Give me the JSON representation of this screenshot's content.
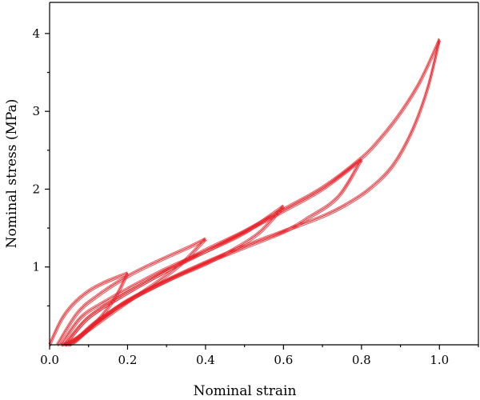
{
  "chart_data": {
    "type": "line",
    "title": "",
    "xlabel": "Nominal strain",
    "ylabel": "Nominal stress (MPa)",
    "xlim": [
      0.0,
      1.1
    ],
    "ylim": [
      0.0,
      4.4
    ],
    "x_ticks": [
      {
        "value": 0.0,
        "label": "0.0"
      },
      {
        "value": 0.2,
        "label": "0.2"
      },
      {
        "value": 0.4,
        "label": "0.4"
      },
      {
        "value": 0.6,
        "label": "0.6"
      },
      {
        "value": 0.8,
        "label": "0.8"
      },
      {
        "value": 1.0,
        "label": "1.0"
      }
    ],
    "y_ticks": [
      {
        "value": 1,
        "label": "1"
      },
      {
        "value": 2,
        "label": "2"
      },
      {
        "value": 3,
        "label": "3"
      },
      {
        "value": 4,
        "label": "4"
      }
    ],
    "grid": false,
    "legend": "none",
    "series_color": "#e8232a",
    "series": [
      {
        "loading": {
          "x": [
            0.0,
            0.03,
            0.06,
            0.1,
            0.14,
            0.2
          ],
          "y": [
            0.0,
            0.32,
            0.52,
            0.69,
            0.8,
            0.92
          ]
        },
        "unloading": {
          "x": [
            0.2,
            0.17,
            0.13,
            0.09,
            0.05,
            0.03
          ],
          "y": [
            0.92,
            0.62,
            0.35,
            0.16,
            0.03,
            0.0
          ]
        }
      },
      {
        "loading": {
          "x": [
            0.02,
            0.07,
            0.12,
            0.2,
            0.28,
            0.36,
            0.4
          ],
          "y": [
            0.0,
            0.4,
            0.62,
            0.88,
            1.08,
            1.26,
            1.36
          ]
        },
        "unloading": {
          "x": [
            0.4,
            0.34,
            0.28,
            0.2,
            0.13,
            0.07,
            0.04
          ],
          "y": [
            1.36,
            1.05,
            0.82,
            0.55,
            0.3,
            0.08,
            0.0
          ]
        }
      },
      {
        "loading": {
          "x": [
            0.03,
            0.08,
            0.14,
            0.2,
            0.3,
            0.4,
            0.5,
            0.6
          ],
          "y": [
            0.0,
            0.35,
            0.55,
            0.72,
            0.98,
            1.2,
            1.44,
            1.78
          ]
        },
        "unloading": {
          "x": [
            0.6,
            0.54,
            0.47,
            0.4,
            0.3,
            0.2,
            0.12,
            0.07,
            0.045
          ],
          "y": [
            1.78,
            1.45,
            1.22,
            1.04,
            0.82,
            0.56,
            0.3,
            0.08,
            0.0
          ]
        }
      },
      {
        "loading": {
          "x": [
            0.04,
            0.1,
            0.2,
            0.3,
            0.4,
            0.5,
            0.6,
            0.7,
            0.8
          ],
          "y": [
            0.0,
            0.35,
            0.67,
            0.95,
            1.2,
            1.45,
            1.72,
            2.0,
            2.38
          ]
        },
        "unloading": {
          "x": [
            0.8,
            0.74,
            0.66,
            0.6,
            0.5,
            0.4,
            0.3,
            0.2,
            0.12,
            0.07,
            0.05
          ],
          "y": [
            2.38,
            1.9,
            1.62,
            1.45,
            1.25,
            1.05,
            0.82,
            0.56,
            0.28,
            0.06,
            0.0
          ]
        }
      },
      {
        "loading": {
          "x": [
            0.04,
            0.1,
            0.2,
            0.3,
            0.4,
            0.5,
            0.6,
            0.7,
            0.8,
            0.85,
            0.9,
            0.95,
            1.0
          ],
          "y": [
            0.0,
            0.35,
            0.67,
            0.95,
            1.22,
            1.46,
            1.74,
            2.02,
            2.4,
            2.66,
            2.98,
            3.38,
            3.92
          ]
        },
        "unloading": {
          "x": [
            1.0,
            0.97,
            0.93,
            0.88,
            0.82,
            0.76,
            0.7,
            0.6,
            0.5,
            0.4,
            0.3,
            0.2,
            0.12,
            0.07,
            0.05
          ],
          "y": [
            3.92,
            3.3,
            2.75,
            2.3,
            2.0,
            1.8,
            1.65,
            1.46,
            1.27,
            1.06,
            0.83,
            0.57,
            0.29,
            0.07,
            0.0
          ]
        }
      }
    ]
  }
}
